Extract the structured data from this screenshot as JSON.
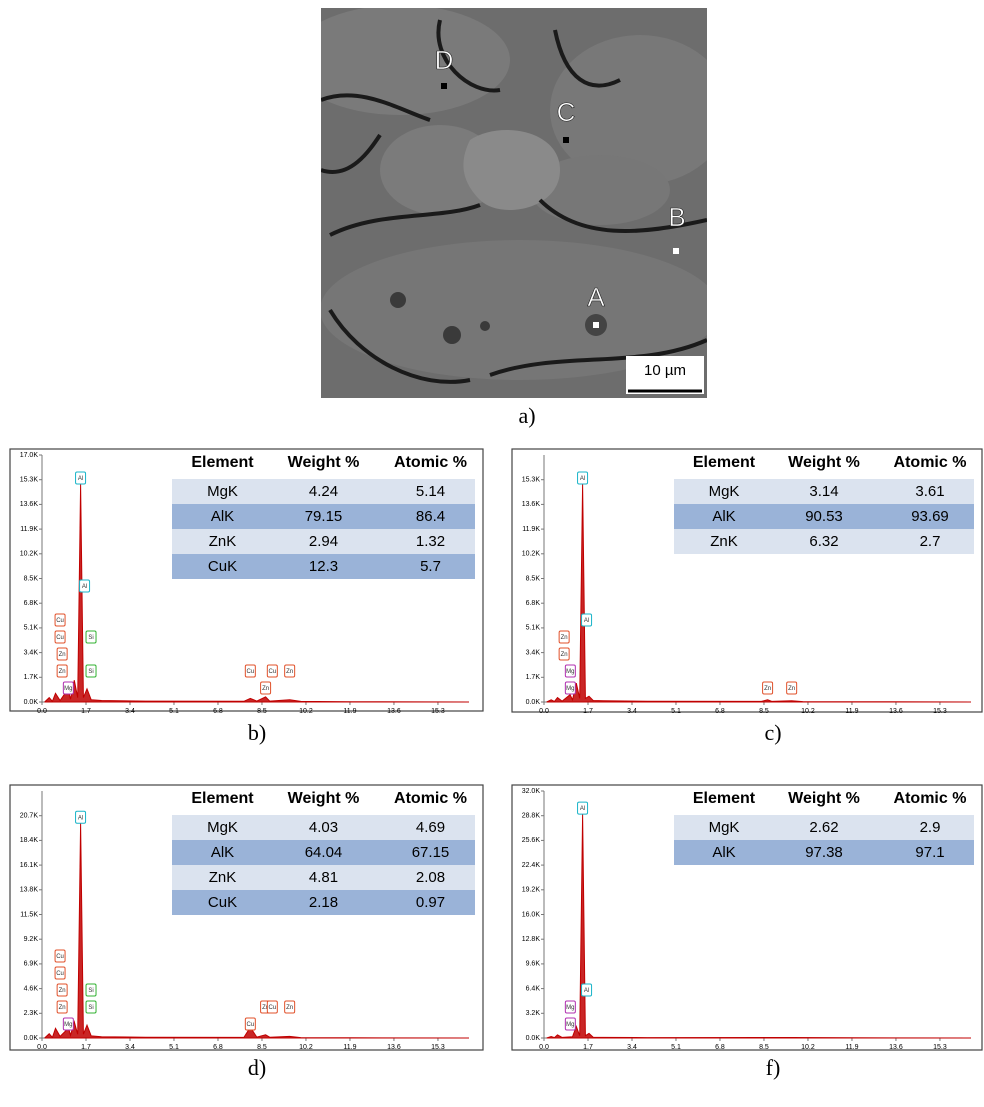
{
  "sem_image": {
    "points": [
      "D",
      "C",
      "B",
      "A"
    ],
    "scale_bar": "10 µm",
    "caption": "a)"
  },
  "element_colors": {
    "Al": "#18b4c8",
    "Mg": "#b030b0",
    "Zn": "#e0502a",
    "Cu": "#e0502a",
    "Si": "#30b030"
  },
  "chart_data": [
    {
      "type": "area",
      "caption": "b)",
      "color": "#c00000",
      "x": [
        0.1,
        0.28,
        0.4,
        0.52,
        0.7,
        0.93,
        1.01,
        1.1,
        1.25,
        1.38,
        1.49,
        1.6,
        1.74,
        1.9,
        2.3,
        4,
        7.8,
        8.05,
        8.3,
        8.64,
        8.8,
        9.57,
        10,
        12,
        16.5
      ],
      "values": [
        0,
        300,
        50,
        600,
        100,
        700,
        900,
        200,
        1500,
        300,
        15000,
        300,
        900,
        150,
        100,
        60,
        50,
        250,
        60,
        350,
        60,
        150,
        40,
        20,
        0
      ],
      "xlim": [
        0,
        16.5
      ],
      "xticks": [
        {
          "value": 0,
          "label": "0.0"
        },
        1.7,
        3.4,
        5.1,
        6.8,
        8.5,
        10.2,
        11.9,
        13.6,
        15.3
      ],
      "ylim": [
        0,
        17000
      ],
      "yticks": [
        {
          "value": 0,
          "label": "0.0K"
        },
        {
          "value": 1700,
          "label": "1.7K"
        },
        {
          "value": 3400,
          "label": "3.4K"
        },
        {
          "value": 5100,
          "label": "5.1K"
        },
        {
          "value": 6800,
          "label": "6.8K"
        },
        {
          "value": 8500,
          "label": "8.5K"
        },
        {
          "value": 10200,
          "label": "10.2K"
        },
        {
          "value": 11900,
          "label": "11.9K"
        },
        {
          "value": 13600,
          "label": "13.6K"
        },
        {
          "value": 15300,
          "label": "15.3K"
        },
        {
          "value": 17000,
          "label": "17.0K"
        }
      ],
      "peak_labels": [
        {
          "label": "Al",
          "energy": 1.49
        },
        {
          "label": "Mg",
          "energy": 1.25
        },
        {
          "label": "Zn",
          "energy": 1.01
        },
        {
          "label": "Zn",
          "energy": 1.01
        },
        {
          "label": "Cu",
          "energy": 0.93
        },
        {
          "label": "Cu",
          "energy": 0.93
        },
        {
          "label": "Si",
          "energy": 1.74
        },
        {
          "label": "Al",
          "energy": 1.49
        },
        {
          "label": "Si",
          "energy": 1.74
        },
        {
          "label": "Zn",
          "energy": 8.64
        },
        {
          "label": "Cu",
          "energy": 8.05
        },
        {
          "label": "Cu",
          "energy": 8.9
        },
        {
          "label": "Zn",
          "energy": 9.57
        }
      ],
      "table": {
        "header": [
          "Element",
          "Weight %",
          "Atomic %"
        ],
        "rows": [
          [
            "MgK",
            "4.24",
            "5.14"
          ],
          [
            "AlK",
            "79.15",
            "86.4"
          ],
          [
            "ZnK",
            "2.94",
            "1.32"
          ],
          [
            "CuK",
            "12.3",
            "5.7"
          ]
        ]
      }
    },
    {
      "type": "area",
      "caption": "c)",
      "color": "#c00000",
      "x": [
        0.1,
        0.28,
        0.4,
        0.52,
        0.7,
        1.01,
        1.1,
        1.25,
        1.38,
        1.49,
        1.6,
        1.74,
        1.9,
        2.3,
        4,
        8.4,
        8.64,
        8.8,
        9.57,
        10,
        12,
        16.5
      ],
      "values": [
        0,
        150,
        40,
        300,
        60,
        500,
        150,
        1300,
        250,
        15000,
        250,
        400,
        100,
        80,
        50,
        40,
        150,
        40,
        80,
        30,
        20,
        0
      ],
      "xlim": [
        0,
        16.5
      ],
      "xticks": [
        {
          "value": 0,
          "label": "0.0"
        },
        1.7,
        3.4,
        5.1,
        6.8,
        8.5,
        10.2,
        11.9,
        13.6,
        15.3
      ],
      "ylim": [
        0,
        17000
      ],
      "yticks": [
        {
          "value": 0,
          "label": "0.0K"
        },
        {
          "value": 1700,
          "label": "1.7K"
        },
        {
          "value": 3400,
          "label": "3.4K"
        },
        {
          "value": 5100,
          "label": "5.1K"
        },
        {
          "value": 6800,
          "label": "6.8K"
        },
        {
          "value": 8500,
          "label": "8.5K"
        },
        {
          "value": 10200,
          "label": "10.2K"
        },
        {
          "value": 11900,
          "label": "11.9K"
        },
        {
          "value": 13600,
          "label": "13.6K"
        },
        {
          "value": 15300,
          "label": "15.3K"
        }
      ],
      "peak_labels": [
        {
          "label": "Al",
          "energy": 1.49
        },
        {
          "label": "Mg",
          "energy": 1.25
        },
        {
          "label": "Mg",
          "energy": 1.25
        },
        {
          "label": "Zn",
          "energy": 1.01
        },
        {
          "label": "Zn",
          "energy": 1.01
        },
        {
          "label": "Al",
          "energy": 1.49
        },
        {
          "label": "Zn",
          "energy": 8.64
        },
        {
          "label": "Zn",
          "energy": 9.57
        }
      ],
      "table": {
        "header": [
          "Element",
          "Weight %",
          "Atomic %"
        ],
        "rows": [
          [
            "MgK",
            "3.14",
            "3.61"
          ],
          [
            "AlK",
            "90.53",
            "93.69"
          ],
          [
            "ZnK",
            "6.32",
            "2.7"
          ]
        ]
      }
    },
    {
      "type": "area",
      "caption": "d)",
      "color": "#c00000",
      "x": [
        0.1,
        0.28,
        0.4,
        0.52,
        0.7,
        0.93,
        1.01,
        1.1,
        1.25,
        1.38,
        1.49,
        1.6,
        1.74,
        1.9,
        2.3,
        4,
        7.8,
        8.05,
        8.3,
        8.64,
        8.8,
        9.57,
        10,
        12,
        16.5
      ],
      "values": [
        0,
        400,
        60,
        900,
        150,
        700,
        1100,
        250,
        1500,
        350,
        20000,
        350,
        1200,
        200,
        120,
        70,
        60,
        1000,
        80,
        300,
        70,
        150,
        40,
        20,
        0
      ],
      "xlim": [
        0,
        16.5
      ],
      "xticks": [
        {
          "value": 0,
          "label": "0.0"
        },
        1.7,
        3.4,
        5.1,
        6.8,
        8.5,
        10.2,
        11.9,
        13.6,
        15.3
      ],
      "ylim": [
        0,
        23000
      ],
      "yticks": [
        {
          "value": 0,
          "label": "0.0K"
        },
        {
          "value": 2300,
          "label": "2.3K"
        },
        {
          "value": 4600,
          "label": "4.6K"
        },
        {
          "value": 6900,
          "label": "6.9K"
        },
        {
          "value": 9200,
          "label": "9.2K"
        },
        {
          "value": 11500,
          "label": "11.5K"
        },
        {
          "value": 13800,
          "label": "13.8K"
        },
        {
          "value": 16100,
          "label": "16.1K"
        },
        {
          "value": 18400,
          "label": "18.4K"
        },
        {
          "value": 20700,
          "label": "20.7K"
        }
      ],
      "peak_labels": [
        {
          "label": "Al",
          "energy": 1.49
        },
        {
          "label": "Mg",
          "energy": 1.25
        },
        {
          "label": "Zn",
          "energy": 1.01
        },
        {
          "label": "Zn",
          "energy": 1.01
        },
        {
          "label": "Cu",
          "energy": 0.93
        },
        {
          "label": "Cu",
          "energy": 0.93
        },
        {
          "label": "Si",
          "energy": 1.74
        },
        {
          "label": "Si",
          "energy": 1.74
        },
        {
          "label": "Cu",
          "energy": 8.05
        },
        {
          "label": "Zn",
          "energy": 8.64
        },
        {
          "label": "Cu",
          "energy": 8.9
        },
        {
          "label": "Zn",
          "energy": 9.57
        }
      ],
      "table": {
        "header": [
          "Element",
          "Weight %",
          "Atomic %"
        ],
        "rows": [
          [
            "MgK",
            "4.03",
            "4.69"
          ],
          [
            "AlK",
            "64.04",
            "67.15"
          ],
          [
            "ZnK",
            "4.81",
            "2.08"
          ],
          [
            "CuK",
            "2.18",
            "0.97"
          ]
        ]
      }
    },
    {
      "type": "area",
      "caption": "f)",
      "color": "#c00000",
      "x": [
        0.1,
        0.28,
        0.4,
        0.52,
        0.7,
        1.1,
        1.25,
        1.38,
        1.49,
        1.6,
        1.74,
        1.9,
        2.3,
        4,
        9.6,
        12,
        16.5
      ],
      "values": [
        0,
        200,
        50,
        400,
        80,
        150,
        1500,
        300,
        29000,
        300,
        600,
        100,
        80,
        50,
        60,
        20,
        0
      ],
      "xlim": [
        0,
        16.5
      ],
      "xticks": [
        {
          "value": 0,
          "label": "0.0"
        },
        1.7,
        3.4,
        5.1,
        6.8,
        8.5,
        10.2,
        11.9,
        13.6,
        15.3
      ],
      "ylim": [
        0,
        32000
      ],
      "yticks": [
        {
          "value": 0,
          "label": "0.0K"
        },
        {
          "value": 3200,
          "label": "3.2K"
        },
        {
          "value": 6400,
          "label": "6.4K"
        },
        {
          "value": 9600,
          "label": "9.6K"
        },
        {
          "value": 12800,
          "label": "12.8K"
        },
        {
          "value": 16000,
          "label": "16.0K"
        },
        {
          "value": 19200,
          "label": "19.2K"
        },
        {
          "value": 22400,
          "label": "22.4K"
        },
        {
          "value": 25600,
          "label": "25.6K"
        },
        {
          "value": 28800,
          "label": "28.8K"
        },
        {
          "value": 32000,
          "label": "32.0K"
        }
      ],
      "peak_labels": [
        {
          "label": "Al",
          "energy": 1.49
        },
        {
          "label": "Mg",
          "energy": 1.25
        },
        {
          "label": "Mg",
          "energy": 1.25
        },
        {
          "label": "Al",
          "energy": 1.49
        }
      ],
      "table": {
        "header": [
          "Element",
          "Weight %",
          "Atomic %"
        ],
        "rows": [
          [
            "MgK",
            "2.62",
            "2.9"
          ],
          [
            "AlK",
            "97.38",
            "97.1"
          ]
        ]
      }
    }
  ]
}
